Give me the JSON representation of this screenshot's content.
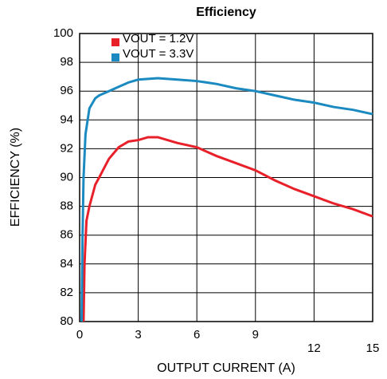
{
  "chart_data": {
    "type": "line",
    "title": "Efficiency",
    "xlabel": "OUTPUT CURRENT (A)",
    "ylabel": "EFFICIENCY (%)",
    "xlim": [
      0,
      15
    ],
    "xticks": [
      0,
      3,
      6,
      9,
      12,
      15
    ],
    "ylim": [
      80,
      100
    ],
    "yticks": [
      80,
      82,
      84,
      86,
      88,
      90,
      92,
      94,
      96,
      98,
      100
    ],
    "grid": true,
    "legend": "upper left",
    "series": [
      {
        "name": "VOUT = 1.2V",
        "color": "#e8202a",
        "x": [
          0.2,
          0.25,
          0.35,
          0.5,
          0.8,
          1,
          1.5,
          2,
          2.5,
          3,
          3.5,
          4,
          4.5,
          5,
          6,
          7,
          8,
          9,
          10,
          11,
          12,
          13,
          14,
          15
        ],
        "values": [
          80,
          84,
          87,
          88,
          89.5,
          90,
          91.3,
          92.1,
          92.5,
          92.6,
          92.8,
          92.8,
          92.6,
          92.4,
          92.1,
          91.5,
          91,
          90.5,
          89.8,
          89.2,
          88.7,
          88.2,
          87.8,
          87.3
        ]
      },
      {
        "name": "VOUT = 3.3V",
        "color": "#1a8ac0",
        "x": [
          0.1,
          0.15,
          0.2,
          0.3,
          0.5,
          0.8,
          1,
          1.5,
          2,
          2.5,
          3,
          4,
          5,
          6,
          7,
          8,
          9,
          10,
          11,
          12,
          13,
          14,
          15
        ],
        "values": [
          80,
          86,
          90,
          93,
          94.8,
          95.5,
          95.7,
          96,
          96.3,
          96.6,
          96.8,
          96.9,
          96.8,
          96.7,
          96.5,
          96.2,
          96,
          95.7,
          95.4,
          95.2,
          94.9,
          94.7,
          94.4
        ]
      }
    ]
  }
}
